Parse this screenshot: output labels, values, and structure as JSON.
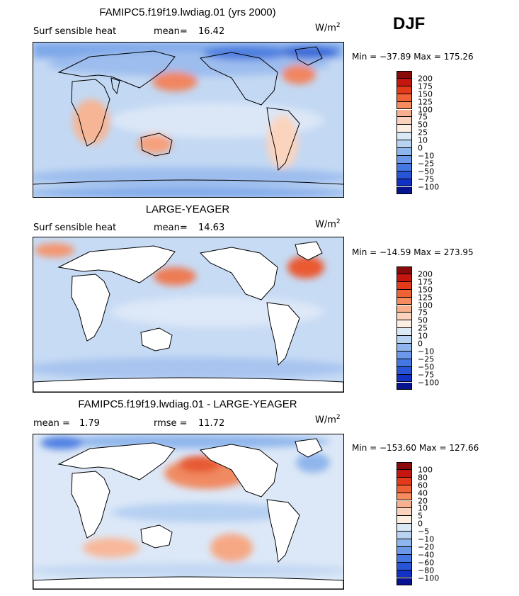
{
  "season": "DJF",
  "units": {
    "base": "W/m",
    "exp": "2"
  },
  "chart_data": [
    {
      "type": "heatmap",
      "title": "FAMIPC5.f19f19.lwdiag.01 (yrs 2000)",
      "variable": "Surf sensible heat",
      "stat1_label": "mean=",
      "stat1_value": "16.42",
      "minmax": "Min = −37.89 Max = 175.26",
      "colorbar_labels": [
        "200",
        "175",
        "150",
        "125",
        "100",
        "75",
        "50",
        "25",
        "10",
        "0",
        "−10",
        "−25",
        "−50",
        "−75",
        "−100"
      ],
      "colorbar_colors": [
        "#8a0a0a",
        "#c4160f",
        "#e33b1a",
        "#ef6236",
        "#f58c5f",
        "#f8b08f",
        "#fbd2bb",
        "#fdeee2",
        "#dbe9f7",
        "#b8d3f2",
        "#8fb6ec",
        "#6b98e8",
        "#4577e2",
        "#2855d8",
        "#1232c5",
        "#07138f"
      ]
    },
    {
      "type": "heatmap",
      "title": "LARGE-YEAGER",
      "variable": "Surf sensible heat",
      "stat1_label": "mean=",
      "stat1_value": "14.63",
      "minmax": "Min = −14.59 Max = 273.95",
      "colorbar_labels": [
        "200",
        "175",
        "150",
        "125",
        "100",
        "75",
        "50",
        "25",
        "10",
        "0",
        "−10",
        "−25",
        "−50",
        "−75",
        "−100"
      ],
      "colorbar_colors": [
        "#8a0a0a",
        "#c4160f",
        "#e33b1a",
        "#ef6236",
        "#f58c5f",
        "#f8b08f",
        "#fbd2bb",
        "#fdeee2",
        "#dbe9f7",
        "#b8d3f2",
        "#8fb6ec",
        "#6b98e8",
        "#4577e2",
        "#2855d8",
        "#1232c5",
        "#07138f"
      ]
    },
    {
      "type": "heatmap",
      "title": "FAMIPC5.f19f19.lwdiag.01 - LARGE-YEAGER",
      "stat1_label": "mean =",
      "stat1_value": "1.79",
      "stat2_label": "rmse =",
      "stat2_value": "11.72",
      "minmax": "Min = −153.60 Max = 127.66",
      "colorbar_labels": [
        "100",
        "80",
        "60",
        "40",
        "20",
        "10",
        "5",
        "0",
        "−5",
        "−10",
        "−20",
        "−40",
        "−60",
        "−80",
        "−100"
      ],
      "colorbar_colors": [
        "#8a0a0a",
        "#c4160f",
        "#e33b1a",
        "#ef6236",
        "#f58c5f",
        "#f8b08f",
        "#fbd2bb",
        "#fdeee2",
        "#dbe9f7",
        "#b8d3f2",
        "#8fb6ec",
        "#6b98e8",
        "#4577e2",
        "#2855d8",
        "#1232c5",
        "#07138f"
      ]
    }
  ]
}
